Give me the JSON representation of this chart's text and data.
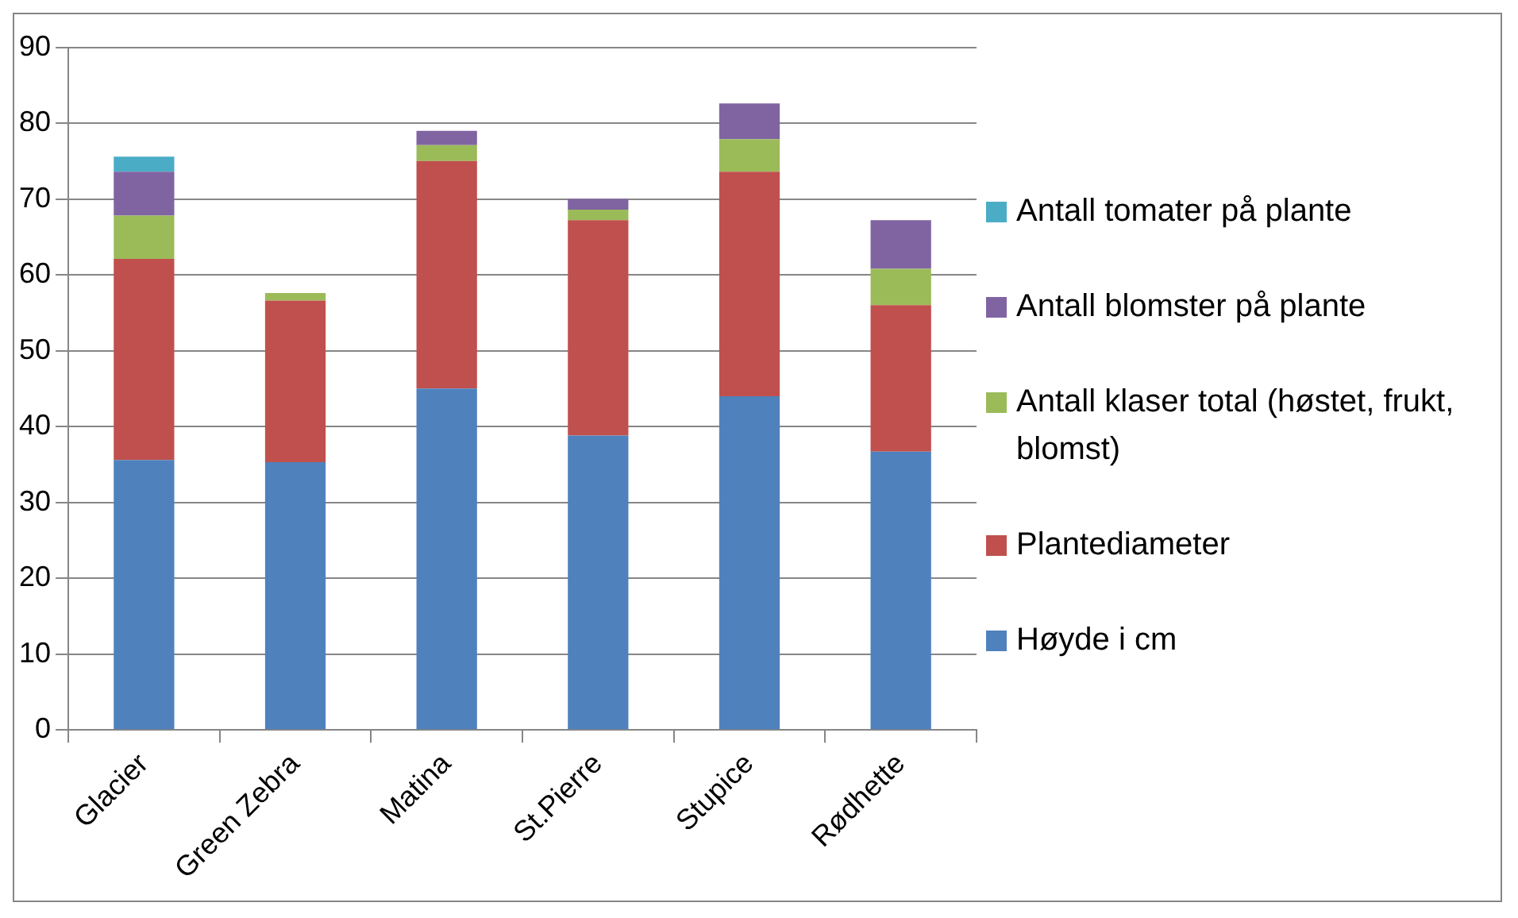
{
  "chart_data": {
    "type": "bar",
    "stacked": true,
    "categories": [
      "Glacier",
      "Green Zebra",
      "Matina",
      "St.Pierre",
      "Stupice",
      "Rødhette"
    ],
    "series": [
      {
        "name": "Høyde i cm",
        "color": "#4f81bd",
        "values": [
          35.6,
          35.3,
          45.0,
          38.8,
          44.0,
          36.7
        ]
      },
      {
        "name": "Plantediameter",
        "color": "#c0504d",
        "values": [
          26.5,
          21.3,
          30.0,
          28.4,
          29.6,
          19.3
        ]
      },
      {
        "name": "Antall klaser total (høstet, frukt, blomst)",
        "color": "#9bbb59",
        "values": [
          5.7,
          1.0,
          2.1,
          1.4,
          4.3,
          4.8
        ]
      },
      {
        "name": "Antall blomster på plante",
        "color": "#8064a2",
        "values": [
          5.8,
          0,
          1.9,
          1.4,
          4.7,
          6.4
        ]
      },
      {
        "name": "Antall tomater på plante",
        "color": "#4bacc6",
        "values": [
          2.0,
          0,
          0,
          0,
          0,
          0
        ]
      }
    ],
    "ylim": [
      0,
      90
    ],
    "yticks": [
      0,
      10,
      20,
      30,
      40,
      50,
      60,
      70,
      80,
      90
    ],
    "grid": "y",
    "legend": "right"
  }
}
